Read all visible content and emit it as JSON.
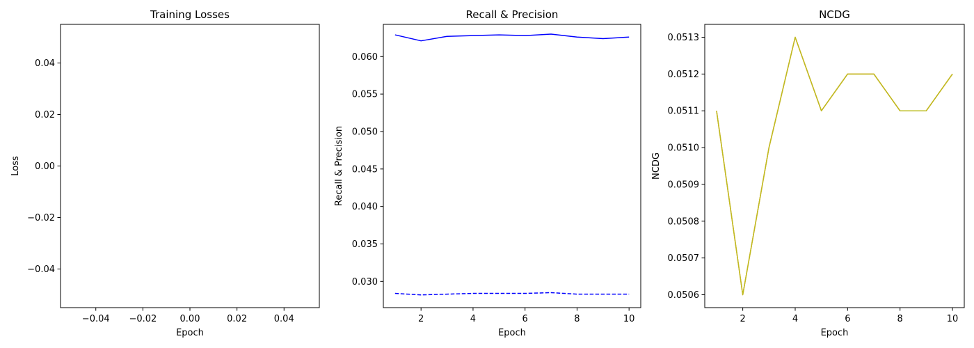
{
  "chart_data": [
    {
      "type": "line",
      "title": "Training Losses",
      "xlabel": "Epoch",
      "ylabel": "Loss",
      "xlim": [
        -0.055,
        0.055
      ],
      "ylim": [
        -0.055,
        0.055
      ],
      "xticks": [
        -0.04,
        -0.02,
        0.0,
        0.02,
        0.04
      ],
      "xtick_labels": [
        "−0.04",
        "−0.02",
        "0.00",
        "0.02",
        "0.04"
      ],
      "yticks": [
        -0.04,
        -0.02,
        0.0,
        0.02,
        0.04
      ],
      "ytick_labels": [
        "−0.04",
        "−0.02",
        "0.00",
        "0.02",
        "0.04"
      ],
      "grid": false,
      "series": []
    },
    {
      "type": "line",
      "title": "Recall & Precision",
      "xlabel": "Epoch",
      "ylabel": "Recall & Precision",
      "xlim": [
        0.55,
        10.45
      ],
      "ylim": [
        0.0265,
        0.0643
      ],
      "xticks": [
        2,
        4,
        6,
        8,
        10
      ],
      "xtick_labels": [
        "2",
        "4",
        "6",
        "8",
        "10"
      ],
      "yticks": [
        0.03,
        0.035,
        0.04,
        0.045,
        0.05,
        0.055,
        0.06
      ],
      "ytick_labels": [
        "0.030",
        "0.035",
        "0.040",
        "0.045",
        "0.050",
        "0.055",
        "0.060"
      ],
      "grid": false,
      "x": [
        1,
        2,
        3,
        4,
        5,
        6,
        7,
        8,
        9,
        10
      ],
      "series": [
        {
          "values": [
            0.0629,
            0.0621,
            0.0627,
            0.0628,
            0.0629,
            0.0628,
            0.063,
            0.0626,
            0.0624,
            0.0626
          ],
          "color": "#0000ff",
          "style": "solid"
        },
        {
          "values": [
            0.0284,
            0.0282,
            0.0283,
            0.0284,
            0.0284,
            0.0284,
            0.0285,
            0.0283,
            0.0283,
            0.0283
          ],
          "color": "#0000ff",
          "style": "dashed"
        }
      ]
    },
    {
      "type": "line",
      "title": "NCDG",
      "xlabel": "Epoch",
      "ylabel": "NCDG",
      "xlim": [
        0.55,
        10.45
      ],
      "ylim": [
        0.050565,
        0.051335
      ],
      "xticks": [
        2,
        4,
        6,
        8,
        10
      ],
      "xtick_labels": [
        "2",
        "4",
        "6",
        "8",
        "10"
      ],
      "yticks": [
        0.0506,
        0.0507,
        0.0508,
        0.0509,
        0.051,
        0.0511,
        0.0512,
        0.0513
      ],
      "ytick_labels": [
        "0.0506",
        "0.0507",
        "0.0508",
        "0.0509",
        "0.0510",
        "0.0511",
        "0.0512",
        "0.0513"
      ],
      "grid": false,
      "x": [
        1,
        2,
        3,
        4,
        5,
        6,
        7,
        8,
        9,
        10
      ],
      "series": [
        {
          "values": [
            0.0511,
            0.0506,
            0.051,
            0.0513,
            0.0511,
            0.0512,
            0.0512,
            0.0511,
            0.0511,
            0.0512
          ],
          "color": "#ff7f0e",
          "style": "solid"
        },
        {
          "values": [
            0.0511,
            0.0506,
            0.051,
            0.0513,
            0.0511,
            0.0512,
            0.0512,
            0.0511,
            0.0511,
            0.0512
          ],
          "color": "#bcbd22",
          "style": "solid"
        }
      ]
    }
  ]
}
